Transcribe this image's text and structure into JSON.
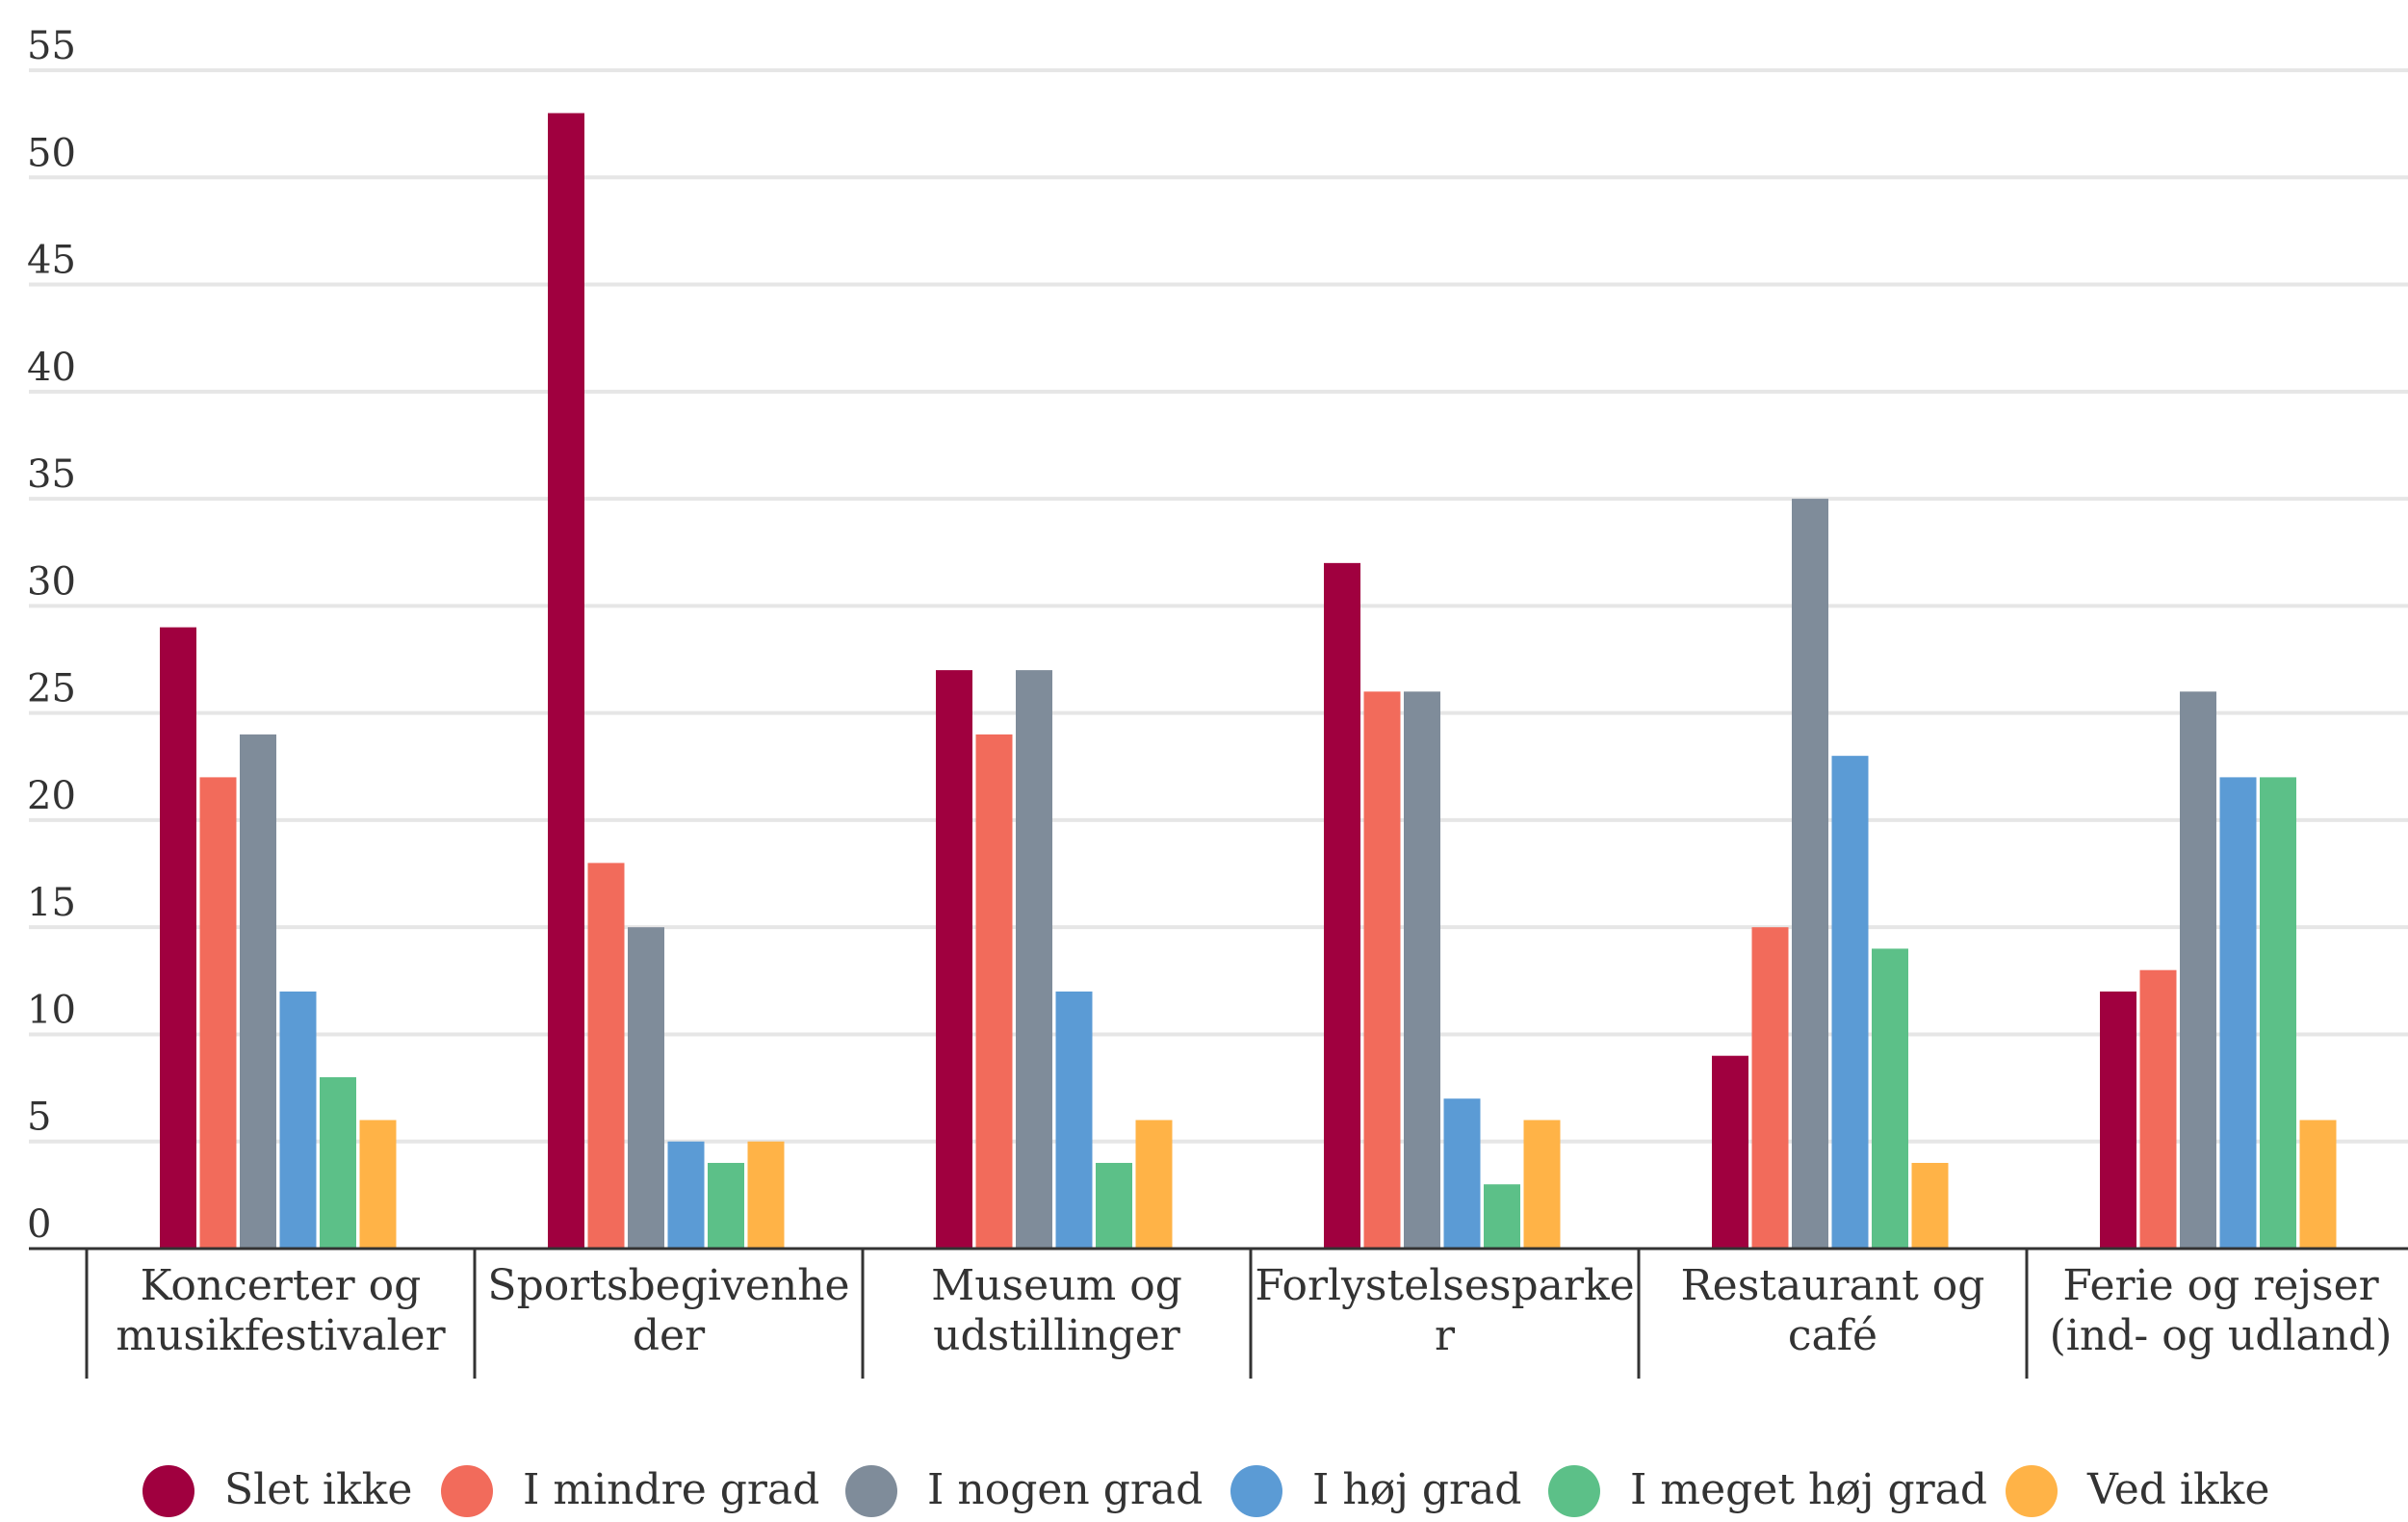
{
  "chart_data": {
    "type": "bar",
    "title": "",
    "xlabel": "",
    "ylabel": "",
    "ylim": [
      0,
      55
    ],
    "yticks": [
      0,
      5,
      10,
      15,
      20,
      25,
      30,
      35,
      40,
      45,
      50,
      55
    ],
    "grid": true,
    "legend_position": "bottom",
    "categories": [
      [
        "Koncerter og",
        "musikfestivaler"
      ],
      [
        "Sportsbegivenhe",
        "der"
      ],
      [
        "Museum og",
        "udstillinger"
      ],
      [
        "Forlystelsesparke",
        "r"
      ],
      [
        "Restaurant og",
        "café"
      ],
      [
        "Ferie og rejser",
        "(ind- og udland)"
      ]
    ],
    "series": [
      {
        "name": "Slet ikke",
        "color": "#a0003f",
        "values": [
          29,
          53,
          27,
          32,
          9,
          12
        ]
      },
      {
        "name": "I mindre grad",
        "color": "#f26b5b",
        "values": [
          22,
          18,
          24,
          26,
          15,
          13
        ]
      },
      {
        "name": "I nogen grad",
        "color": "#7f8c9a",
        "values": [
          24,
          15,
          27,
          26,
          35,
          26
        ]
      },
      {
        "name": "I høj grad",
        "color": "#5b9bd5",
        "values": [
          12,
          5,
          12,
          7,
          23,
          22
        ]
      },
      {
        "name": "I meget høj grad",
        "color": "#5cc088",
        "values": [
          8,
          4,
          4,
          3,
          14,
          22
        ]
      },
      {
        "name": "Ved ikke",
        "color": "#ffb347",
        "values": [
          6,
          5,
          6,
          6,
          4,
          6
        ]
      }
    ]
  }
}
